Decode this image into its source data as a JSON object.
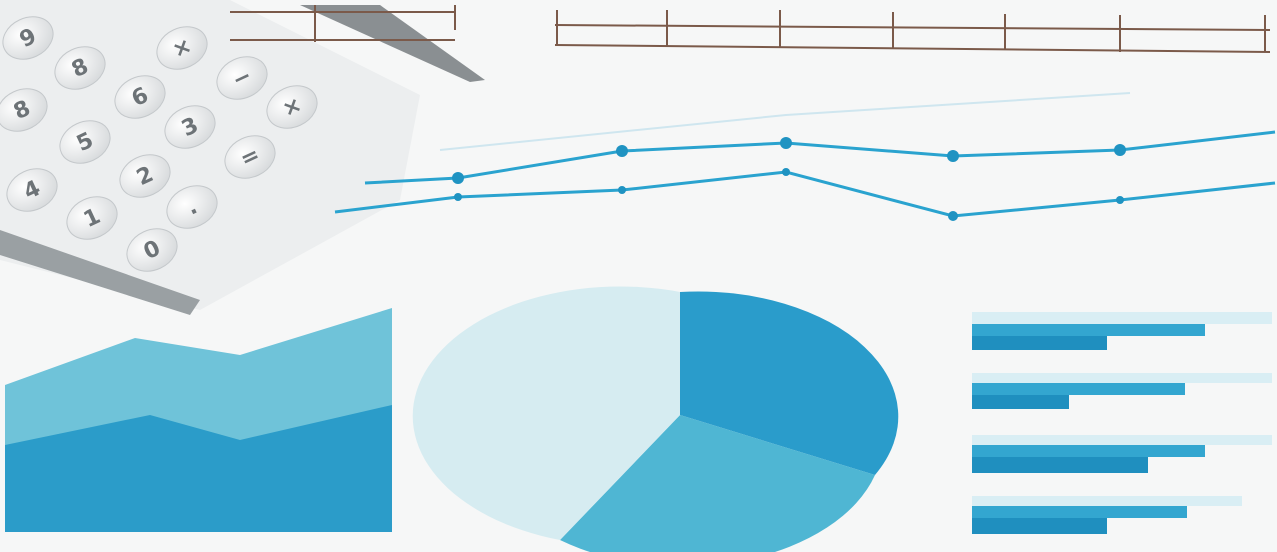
{
  "calculator": {
    "keys": [
      "9",
      "8",
      "×",
      "6",
      "−",
      "8",
      "5",
      "3",
      "×",
      "2",
      "=",
      "4",
      "1",
      ".",
      "0"
    ]
  }
}
